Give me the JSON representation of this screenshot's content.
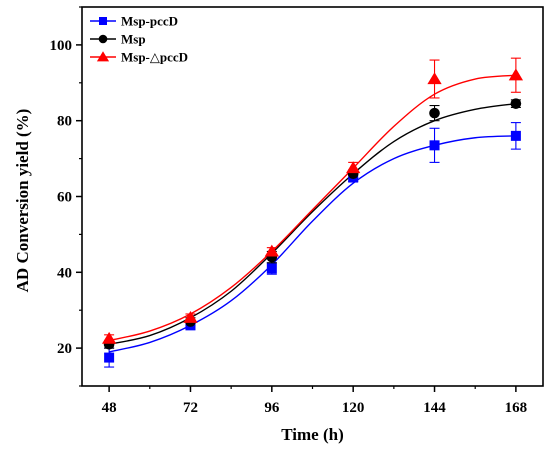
{
  "chart_data": {
    "type": "line",
    "xlabel": "Time (h)",
    "ylabel": "AD Conversion yield (%)",
    "x": [
      48,
      72,
      96,
      120,
      144,
      168
    ],
    "xticks": [
      "48",
      "72",
      "96",
      "120",
      "144",
      "168"
    ],
    "yticks": [
      "20",
      "40",
      "60",
      "80",
      "100"
    ],
    "xlim": [
      40,
      176
    ],
    "ylim": [
      10,
      110
    ],
    "legend_position": "top-left",
    "series": [
      {
        "name": "Msp-pccD",
        "color": "#0000ff",
        "marker": "square",
        "values": [
          17.5,
          26.0,
          41.0,
          65.0,
          73.5,
          76.0
        ],
        "errors": [
          2.5,
          1.0,
          1.5,
          1.0,
          4.5,
          3.5
        ],
        "fit": [
          [
            48,
            19.0
          ],
          [
            60,
            21.5
          ],
          [
            72,
            26.0
          ],
          [
            84,
            32.5
          ],
          [
            96,
            42.0
          ],
          [
            108,
            53.5
          ],
          [
            120,
            63.5
          ],
          [
            132,
            70.0
          ],
          [
            144,
            73.5
          ],
          [
            156,
            75.5
          ],
          [
            168,
            76.0
          ]
        ]
      },
      {
        "name": "Msp",
        "color": "#000000",
        "marker": "circle",
        "values": [
          21.0,
          27.0,
          44.0,
          66.0,
          82.0,
          84.5
        ],
        "errors": [
          1.0,
          1.0,
          1.5,
          1.0,
          2.0,
          1.0
        ],
        "fit": [
          [
            48,
            21.0
          ],
          [
            60,
            23.3
          ],
          [
            72,
            28.0
          ],
          [
            84,
            35.0
          ],
          [
            96,
            45.0
          ],
          [
            108,
            56.0
          ],
          [
            120,
            66.0
          ],
          [
            132,
            74.5
          ],
          [
            144,
            80.0
          ],
          [
            156,
            83.0
          ],
          [
            168,
            84.5
          ]
        ]
      },
      {
        "name": "Msp-△pccD",
        "color": "#ff0000",
        "marker": "triangle",
        "values": [
          22.5,
          28.0,
          45.5,
          67.5,
          91.0,
          92.0
        ],
        "errors": [
          1.0,
          1.0,
          1.0,
          1.5,
          5.0,
          4.5
        ],
        "fit": [
          [
            48,
            22.0
          ],
          [
            60,
            24.5
          ],
          [
            72,
            29.0
          ],
          [
            84,
            36.0
          ],
          [
            96,
            45.5
          ],
          [
            108,
            56.5
          ],
          [
            120,
            67.5
          ],
          [
            132,
            78.5
          ],
          [
            144,
            87.0
          ],
          [
            156,
            91.0
          ],
          [
            168,
            92.0
          ]
        ]
      }
    ]
  }
}
